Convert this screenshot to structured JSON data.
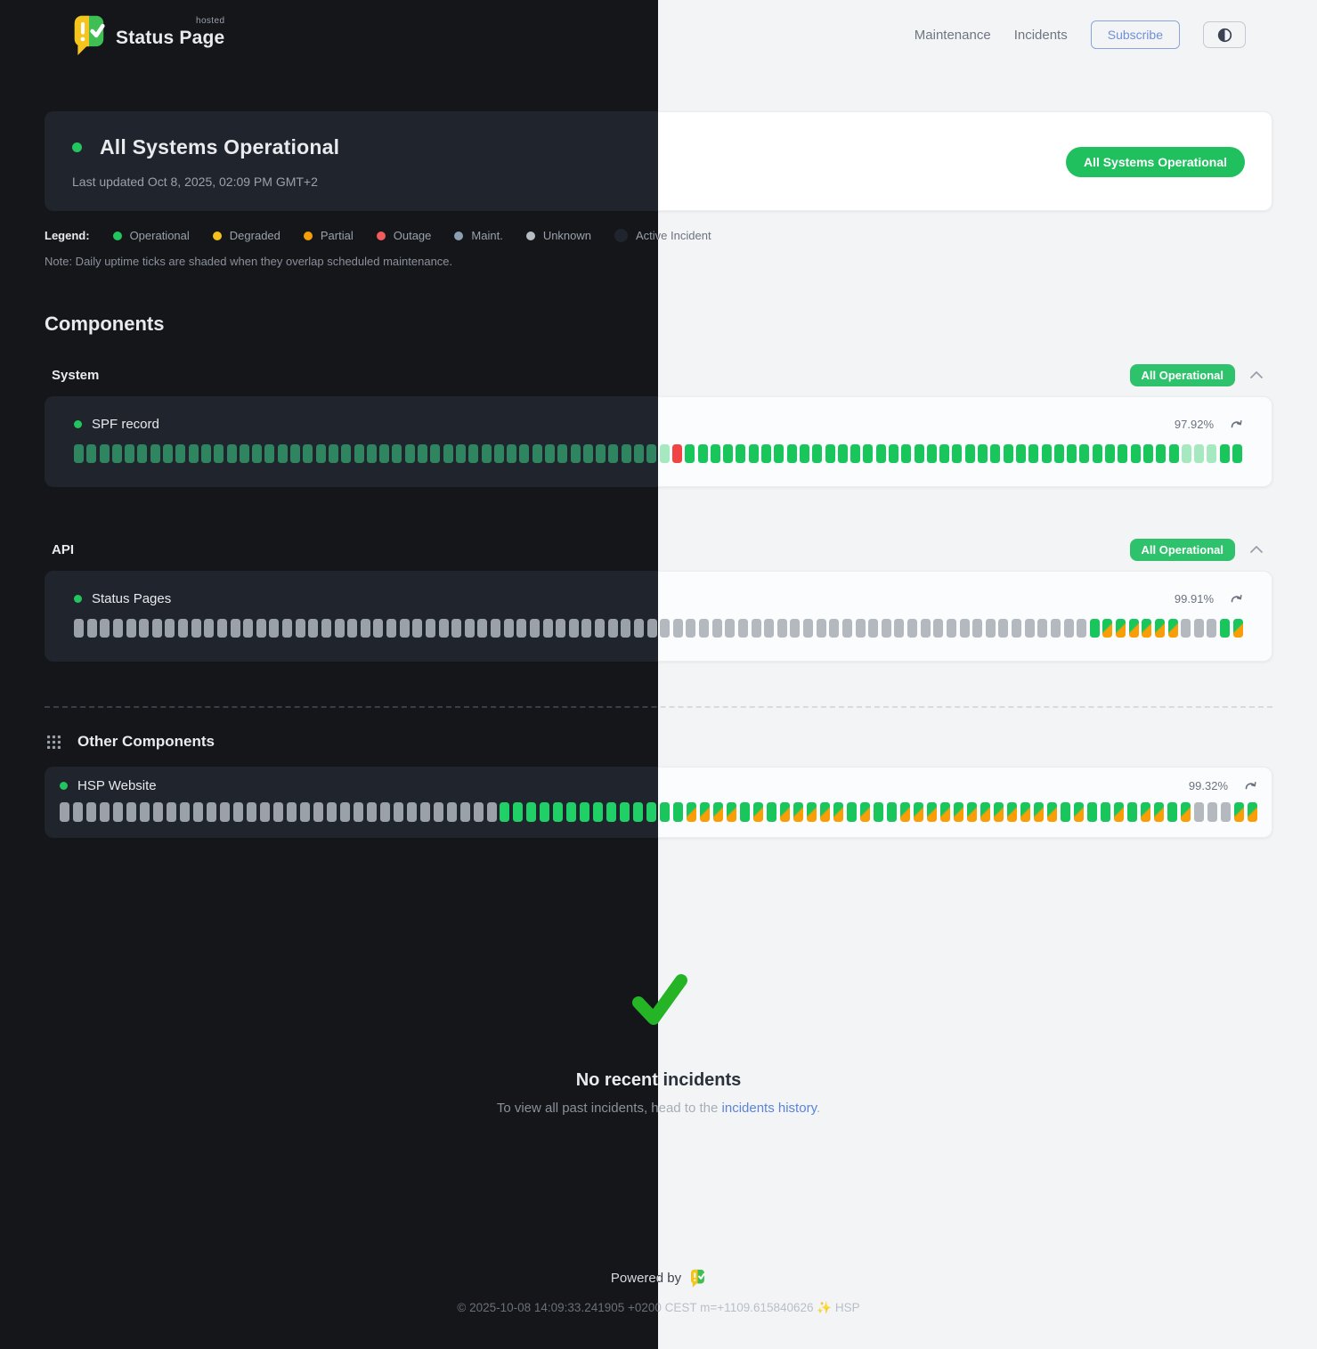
{
  "header": {
    "brand": "Status Page",
    "brand_sub": "hosted",
    "nav": [
      {
        "label": "Maintenance"
      },
      {
        "label": "Incidents"
      }
    ],
    "subscribe_label": "Subscribe"
  },
  "hero": {
    "title": "All Systems Operational",
    "updated": "Last updated Oct 8, 2025, 02:09 PM GMT+2",
    "badge": "All Systems Operational"
  },
  "legend": {
    "label": "Legend:",
    "items": [
      {
        "label": "Operational",
        "color": "#22c55e"
      },
      {
        "label": "Degraded",
        "color": "#f5c21b"
      },
      {
        "label": "Partial",
        "color": "#f59e0b"
      },
      {
        "label": "Outage",
        "color": "#f15b5b"
      },
      {
        "label": "Maint.",
        "color": "#8aa0b2"
      },
      {
        "label": "Unknown",
        "color": "#b7bcc3"
      },
      {
        "label": "Active Incident",
        "color": "#20252d"
      }
    ],
    "note": "Note: Daily uptime ticks are shaded when they overlap scheduled maintenance."
  },
  "components": {
    "title": "Components",
    "tick_status_map": {
      "o": "operational",
      "g": "operational",
      "m": "operational-maintenance-shaded",
      "u": "unknown",
      "d": "outage",
      "p": "operational-maintenance-partial"
    },
    "groups": [
      {
        "name": "System",
        "badge": "All Operational",
        "items": [
          {
            "name": "SPF record",
            "uptime": "97.92%",
            "ticks": "oooooooooooooooooooooooooooooooooooooooooooommmdooooooooooooooooooooooooooooooooooooooommmoo"
          }
        ]
      },
      {
        "name": "API",
        "badge": "All Operational",
        "items": [
          {
            "name": "Status Pages",
            "uptime": "99.91%",
            "ticks": "uuuuuuuuuuuuuuuuuuuuuuuuuuuuuuuuuuuuuuuuuuuuuuuuuuuuuuuuuuuuuuuuuuuuuuuuuuuuuugppppppuuugp"
          }
        ]
      }
    ],
    "other": {
      "title": "Other Components",
      "items": [
        {
          "name": "HSP Website",
          "uptime": "99.32%",
          "ticks": "uuuuuuuuuuuuuuuuuuuuuuuuuuuuuuuuuggggggggggggggppppgpgpppppgpggppppppppppppgpggpgppgpuuupp"
        }
      ]
    }
  },
  "incidents": {
    "title": "No recent incidents",
    "subtitle_prefix": "To view all past incidents, head to the ",
    "link": "incidents history",
    "suffix": "."
  },
  "footer": {
    "powered_by": "Powered by",
    "copyright": "© 2025-10-08 14:09:33.241905 +0200 CEST m=+1109.615840626 ✨ HSP"
  },
  "colors": {
    "brand_yellow": "#f6c51d",
    "brand_green": "#3ebe53",
    "accent_green": "#20c05f",
    "outage_red": "#f14545",
    "maintenance_orange": "#f99e06",
    "link_blue": "#5b83d9",
    "check_green": "#25b425"
  }
}
